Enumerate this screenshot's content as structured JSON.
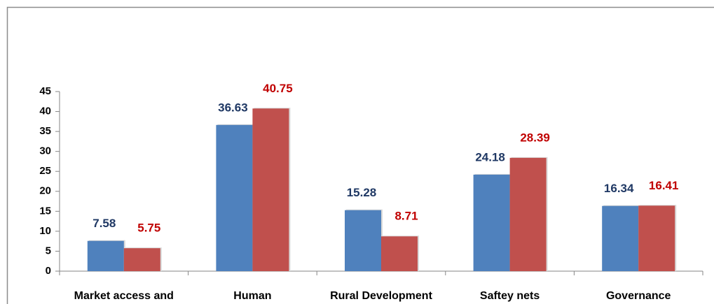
{
  "chart_data": {
    "type": "bar",
    "categories": [
      "Market access and",
      "Human",
      "Rural Development",
      "Saftey nets",
      "Governance"
    ],
    "series": [
      {
        "color": "#4f81bd",
        "label_color": "#1f3864",
        "values": [
          7.58,
          36.63,
          15.28,
          24.18,
          16.34
        ]
      },
      {
        "color": "#c0504d",
        "label_color": "#c00000",
        "values": [
          5.75,
          40.75,
          8.71,
          28.39,
          16.41
        ]
      }
    ],
    "ylim": [
      0,
      45
    ],
    "yticks": [
      0,
      5,
      10,
      15,
      20,
      25,
      30,
      35,
      40,
      45
    ],
    "grid": false
  }
}
